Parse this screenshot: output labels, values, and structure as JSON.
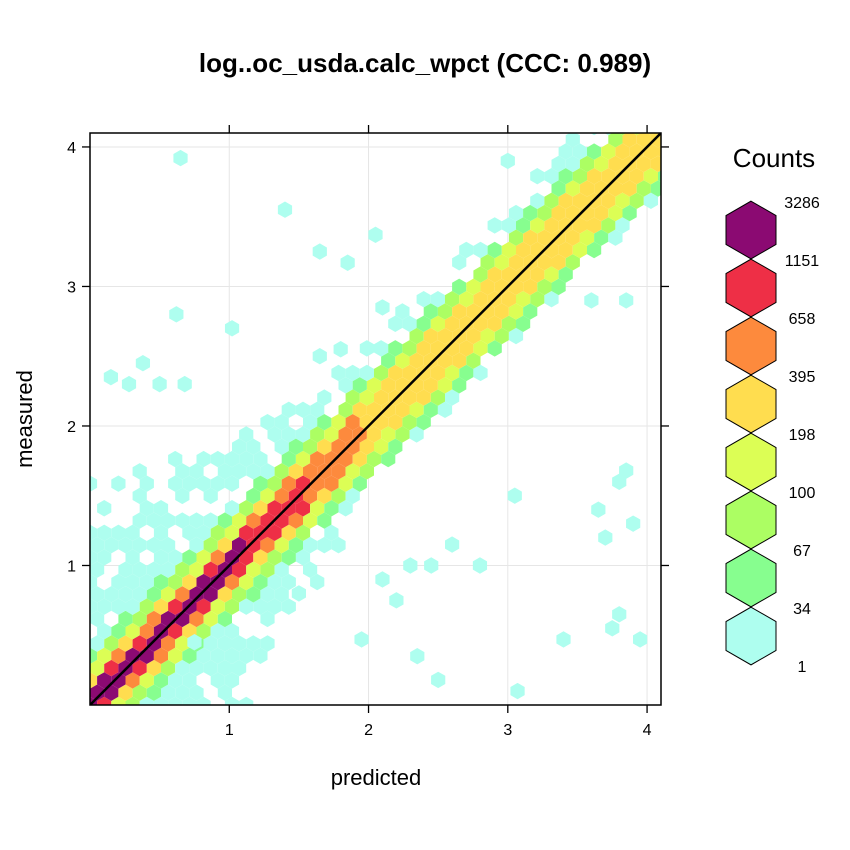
{
  "chart_data": {
    "type": "heatmap",
    "subtype": "hexbin",
    "title": "log..oc_usda.calc_wpct  (CCC: 0.989)",
    "xlabel": "predicted",
    "ylabel": "measured",
    "xlim": [
      0,
      4.1
    ],
    "ylim": [
      0,
      4.1
    ],
    "xticks": [
      1,
      2,
      3,
      4
    ],
    "yticks": [
      1,
      2,
      3,
      4
    ],
    "grid": true,
    "reference_line": {
      "slope": 1,
      "intercept": 0,
      "color": "#000000"
    },
    "legend": {
      "title": "Counts",
      "position": "right",
      "breaks": [
        "3286",
        "1151",
        "658",
        "395",
        "198",
        "100",
        "67",
        "34",
        "1"
      ],
      "colors": [
        "#8b0a72",
        "#ee2f46",
        "#fd8a3d",
        "#ffdd4f",
        "#dcfe55",
        "#acfe63",
        "#87fe8f",
        "#aefeef"
      ]
    },
    "density_bands": [
      {
        "max_offset": 0.08,
        "color": "#8b0a72",
        "x_range": [
          0,
          1.05
        ]
      },
      {
        "max_offset": 0.12,
        "color": "#ee2f46",
        "x_range": [
          0,
          1.5
        ]
      },
      {
        "max_offset": 0.16,
        "color": "#fd8a3d",
        "x_range": [
          0,
          1.9
        ]
      },
      {
        "max_offset": 0.2,
        "color": "#ffdd4f",
        "x_range": [
          0,
          4.1
        ]
      },
      {
        "max_offset": 0.26,
        "color": "#dcfe55",
        "x_range": [
          0,
          4.1
        ]
      },
      {
        "max_offset": 0.32,
        "color": "#acfe63",
        "x_range": [
          0,
          4.1
        ]
      },
      {
        "max_offset": 0.38,
        "color": "#87fe8f",
        "x_range": [
          0,
          4.1
        ]
      }
    ],
    "outlier_points": [
      [
        0.65,
        3.92
      ],
      [
        1.4,
        3.55
      ],
      [
        1.65,
        3.25
      ],
      [
        1.85,
        3.17
      ],
      [
        2.05,
        3.37
      ],
      [
        0.62,
        2.8
      ],
      [
        1.02,
        2.7
      ],
      [
        0.38,
        2.45
      ],
      [
        0.15,
        2.35
      ],
      [
        0.28,
        2.3
      ],
      [
        0.5,
        2.3
      ],
      [
        0.68,
        2.3
      ],
      [
        1.65,
        2.5
      ],
      [
        1.8,
        2.55
      ],
      [
        2.1,
        2.85
      ],
      [
        3.05,
        1.5
      ],
      [
        3.65,
        1.4
      ],
      [
        3.8,
        1.6
      ],
      [
        3.85,
        1.68
      ],
      [
        3.9,
        1.3
      ],
      [
        3.7,
        1.2
      ],
      [
        2.6,
        1.15
      ],
      [
        2.8,
        1.0
      ],
      [
        2.3,
        1.0
      ],
      [
        2.45,
        1.0
      ],
      [
        3.8,
        0.65
      ],
      [
        3.75,
        0.55
      ],
      [
        3.95,
        0.47
      ],
      [
        3.4,
        0.47
      ],
      [
        3.07,
        0.1
      ],
      [
        2.5,
        0.18
      ],
      [
        1.95,
        0.47
      ],
      [
        2.1,
        0.9
      ],
      [
        2.2,
        0.75
      ],
      [
        3.0,
        3.9
      ],
      [
        3.6,
        2.9
      ],
      [
        3.85,
        2.9
      ],
      [
        0.75,
        0.45
      ],
      [
        2.35,
        0.35
      ],
      [
        1.5,
        0.8
      ]
    ]
  }
}
